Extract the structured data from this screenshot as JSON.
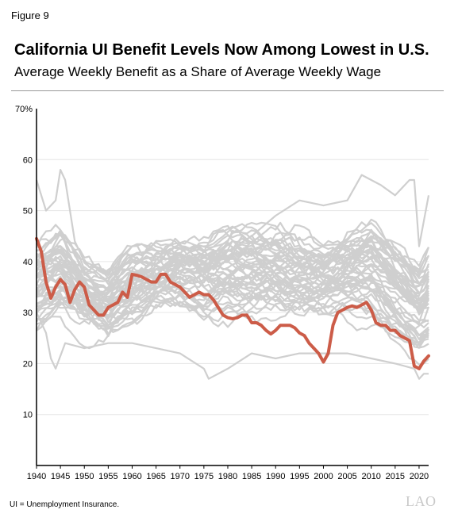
{
  "figure_label": "Figure 9",
  "footnote": "UI = Unemployment Insurance.",
  "logo_text": "LAO",
  "colors": {
    "highlight": "#cc5c48",
    "states": "#cfcfcf",
    "axis": "#000000",
    "grid": "#e6e6e6"
  },
  "chart_data": {
    "type": "line",
    "title": "California UI Benefit Levels Now Among Lowest in U.S.",
    "subtitle": "Average Weekly Benefit as a Share of Average Weekly Wage",
    "xlabel": "",
    "ylabel": "",
    "xlim": [
      1940,
      2022
    ],
    "ylim": [
      0,
      70
    ],
    "x_ticks": [
      1940,
      1945,
      1950,
      1955,
      1960,
      1965,
      1970,
      1975,
      1980,
      1985,
      1990,
      1995,
      2000,
      2005,
      2010,
      2015,
      2020
    ],
    "y_ticks": [
      10,
      20,
      30,
      40,
      50,
      60,
      70
    ],
    "y_tick_labels": [
      "10",
      "20",
      "30",
      "40",
      "50",
      "60",
      "70%"
    ],
    "grid": "horizontal",
    "highlight_series": {
      "x": [
        1940,
        1941,
        1942,
        1943,
        1944,
        1945,
        1946,
        1947,
        1948,
        1949,
        1950,
        1951,
        1952,
        1953,
        1954,
        1955,
        1956,
        1957,
        1958,
        1959,
        1960,
        1961,
        1962,
        1963,
        1964,
        1965,
        1966,
        1967,
        1968,
        1969,
        1970,
        1971,
        1972,
        1973,
        1974,
        1975,
        1976,
        1977,
        1978,
        1979,
        1980,
        1981,
        1982,
        1983,
        1984,
        1985,
        1986,
        1987,
        1988,
        1989,
        1990,
        1991,
        1992,
        1993,
        1994,
        1995,
        1996,
        1997,
        1998,
        1999,
        2000,
        2001,
        2002,
        2003,
        2004,
        2005,
        2006,
        2007,
        2008,
        2009,
        2010,
        2011,
        2012,
        2013,
        2014,
        2015,
        2016,
        2017,
        2018,
        2019,
        2020,
        2021,
        2022
      ],
      "values": [
        44.5,
        42,
        36,
        32.8,
        35,
        36.5,
        35.5,
        32,
        34.5,
        36,
        35,
        31.5,
        30.5,
        29.5,
        29.5,
        31,
        31.5,
        32,
        34,
        33,
        37.5,
        37.3,
        37,
        36.5,
        36,
        36,
        37.5,
        37.5,
        36,
        35.5,
        35,
        34,
        33,
        33.5,
        34,
        33.5,
        33.5,
        32.5,
        31,
        29.5,
        29,
        28.8,
        29,
        29.5,
        29.5,
        28,
        28,
        27.5,
        26.5,
        25.8,
        26.5,
        27.5,
        27.5,
        27.5,
        27,
        26,
        25.5,
        24,
        23,
        22,
        20.3,
        22,
        27.5,
        30,
        30.5,
        31,
        31.3,
        31,
        31.5,
        32,
        30.5,
        28,
        27.5,
        27.5,
        26.5,
        26.5,
        25.5,
        25,
        24.5,
        19.5,
        19,
        20.5,
        21.5
      ]
    },
    "other_series_count": 50,
    "other_series_summary": {
      "x": [
        1940,
        1945,
        1950,
        1955,
        1960,
        1965,
        1970,
        1975,
        1980,
        1985,
        1990,
        1995,
        2000,
        2005,
        2010,
        2015,
        2020,
        2022
      ],
      "median": [
        35,
        37,
        33,
        31,
        35,
        37,
        38,
        37,
        38,
        38,
        38,
        37,
        36,
        37,
        38,
        34,
        30,
        32
      ],
      "spread": [
        8,
        8,
        6,
        5,
        6,
        5,
        5,
        6,
        7,
        7,
        7,
        7,
        7,
        7,
        8,
        8,
        7,
        8
      ]
    },
    "other_series_extremes": [
      {
        "x": [
          1940,
          1942,
          1944,
          1945,
          1946,
          1948,
          1950,
          1955,
          1960,
          1965,
          1970,
          1975,
          1980,
          1985,
          1990,
          1995,
          2000,
          2005,
          2008,
          2010,
          2012,
          2015,
          2018,
          2019,
          2020,
          2021,
          2022
        ],
        "values": [
          56,
          50,
          52,
          58,
          56,
          44,
          40,
          38,
          40,
          41,
          40,
          41,
          42,
          45,
          49,
          52,
          51,
          52,
          57,
          56,
          55,
          53,
          56,
          56,
          43,
          48,
          53
        ]
      },
      {
        "x": [
          1940,
          1942,
          1943,
          1944,
          1946,
          1950,
          1955,
          1960,
          1965,
          1970,
          1975,
          1976,
          1980,
          1985,
          1990,
          1995,
          2000,
          2005,
          2010,
          2015,
          2019,
          2020,
          2021,
          2022
        ],
        "values": [
          30,
          26,
          21,
          19,
          24,
          23,
          24,
          24,
          23,
          22,
          19,
          17,
          19,
          22,
          21,
          22,
          22,
          22,
          21,
          20,
          19,
          17,
          18,
          18
        ]
      }
    ]
  }
}
